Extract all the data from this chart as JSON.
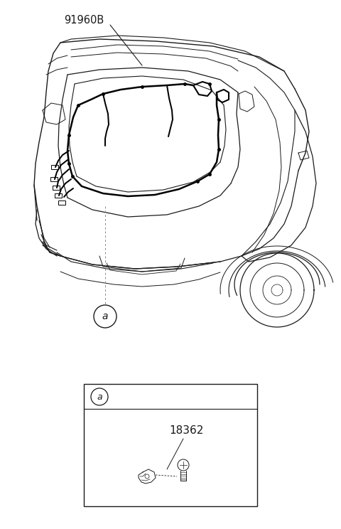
{
  "bg_color": "#ffffff",
  "line_color": "#1a1a1a",
  "part_label_main": "91960B",
  "part_label_sub": "18362",
  "callout_letter": "a",
  "fig_width": 4.8,
  "fig_height": 7.44,
  "dpi": 100
}
